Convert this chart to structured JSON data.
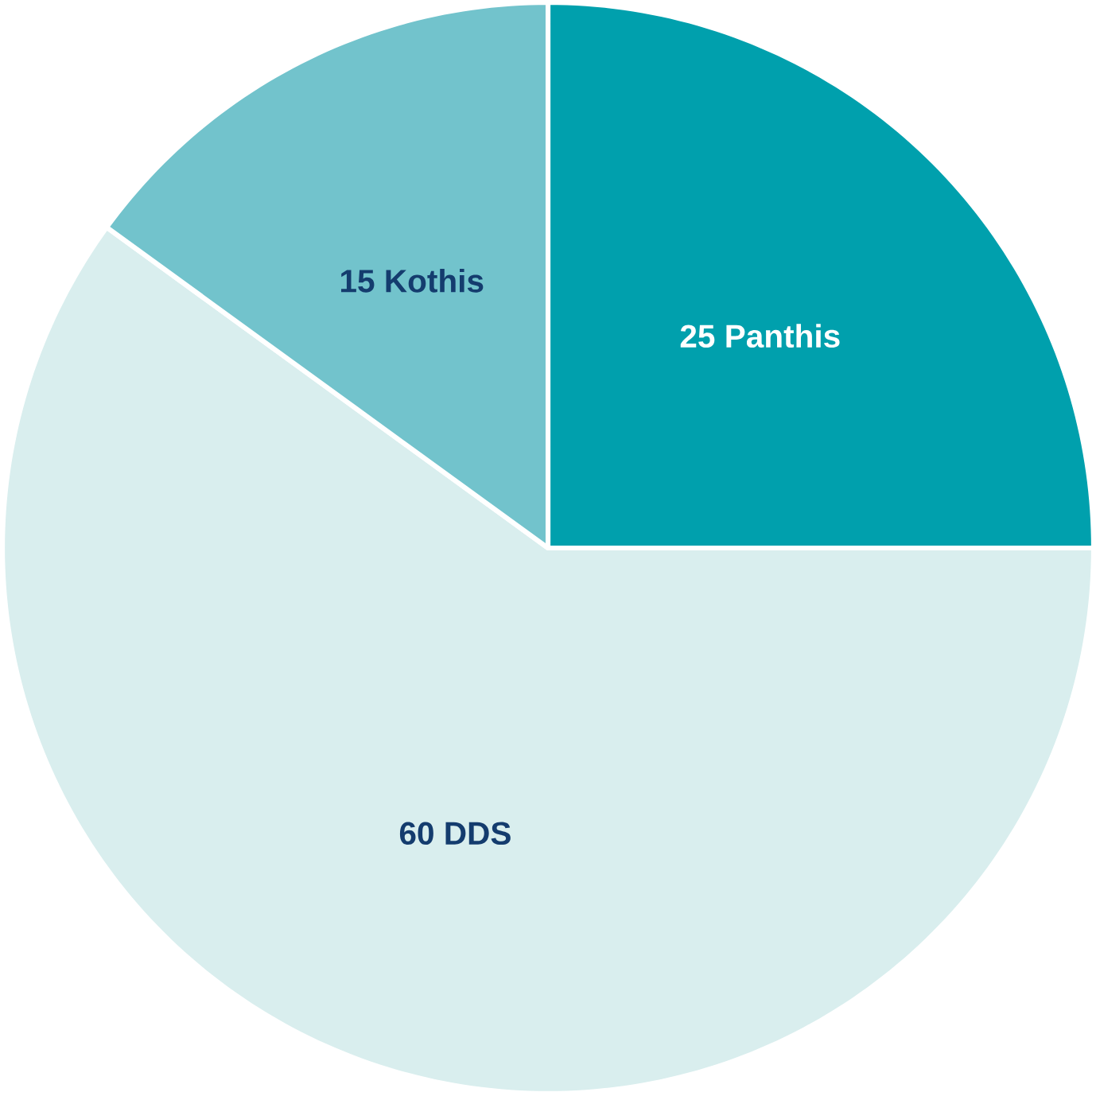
{
  "chart_data": {
    "type": "pie",
    "categories": [
      "Panthis",
      "DDS",
      "Kothis"
    ],
    "values": [
      25,
      60,
      15
    ],
    "colors": [
      "#00a0ad",
      "#d9eeee",
      "#72c3cc"
    ],
    "value_labels": [
      "25",
      "60",
      "15"
    ]
  }
}
